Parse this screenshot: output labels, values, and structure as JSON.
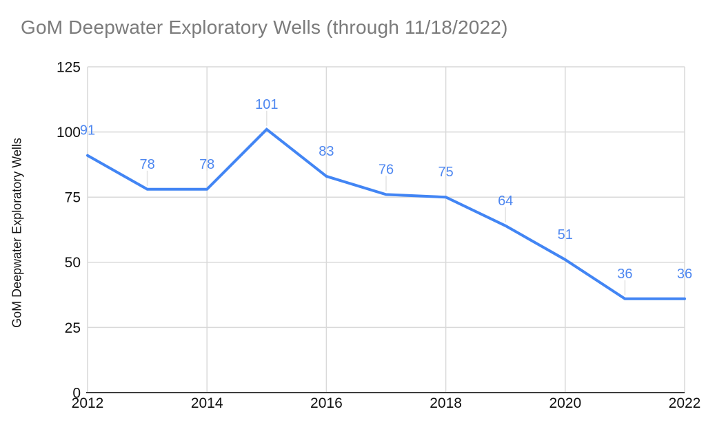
{
  "title": "GoM Deepwater Exploratory Wells (through 11/18/2022)",
  "chart_data": {
    "type": "line",
    "title": "GoM Deepwater Exploratory Wells (through 11/18/2022)",
    "xlabel": "",
    "ylabel": "GoM Deepwater Exploratory Wells",
    "x": [
      2012,
      2013,
      2014,
      2015,
      2016,
      2017,
      2018,
      2019,
      2020,
      2021,
      2022
    ],
    "values": [
      91,
      78,
      78,
      101,
      83,
      76,
      75,
      64,
      51,
      36,
      36
    ],
    "data_labels": [
      "91",
      "78",
      "78",
      "101",
      "83",
      "76",
      "75",
      "64",
      "51",
      "36",
      "36"
    ],
    "xlim": [
      2012,
      2022
    ],
    "ylim": [
      0,
      125
    ],
    "xticks": [
      2012,
      2014,
      2016,
      2018,
      2020,
      2022
    ],
    "yticks": [
      0,
      25,
      50,
      75,
      100,
      125
    ],
    "grid": true,
    "legend": false,
    "colors": {
      "series_line": "#4285f4",
      "data_label": "#4e87f0",
      "title_text": "#7b7b7b",
      "axis_text": "#111111",
      "gridline": "#d9d9d9",
      "axis_line": "#3d3d3d",
      "leader_line": "#e2e2e2",
      "background": "#ffffff"
    }
  }
}
